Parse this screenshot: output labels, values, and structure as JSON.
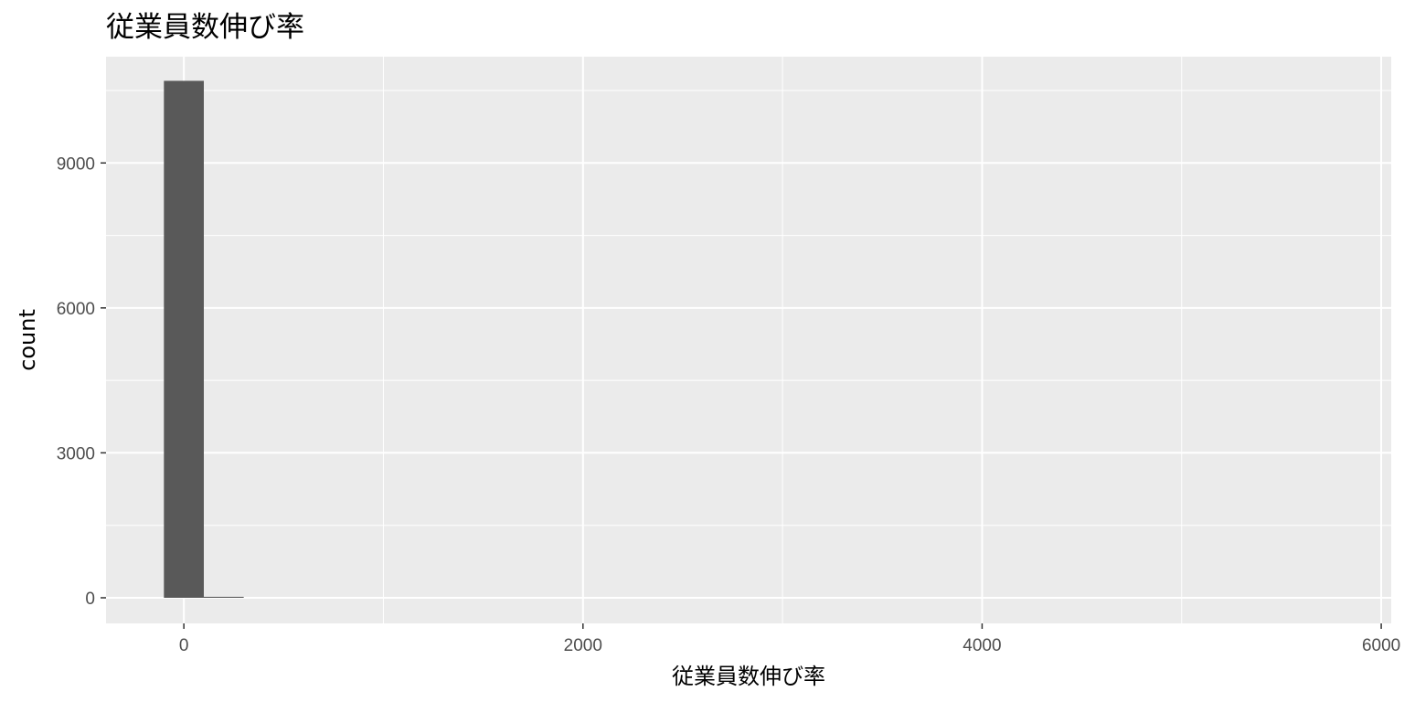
{
  "chart_data": {
    "type": "bar",
    "title": "従業員数伸び率",
    "xlabel": "従業員数伸び率",
    "ylabel": "count",
    "x_ticks": [
      0,
      2000,
      4000,
      6000
    ],
    "y_ticks": [
      0,
      3000,
      6000,
      9000
    ],
    "xlim": [
      -390,
      6050
    ],
    "ylim": [
      -530,
      11200
    ],
    "grid": true,
    "bin_width": 200,
    "bins": [
      {
        "x_start": -100,
        "x_end": 100,
        "count": 10700
      },
      {
        "x_start": 100,
        "x_end": 300,
        "count": 20
      }
    ],
    "colors": {
      "panel": "#ebebeb",
      "grid": "#ffffff",
      "bar": "#595959"
    }
  }
}
